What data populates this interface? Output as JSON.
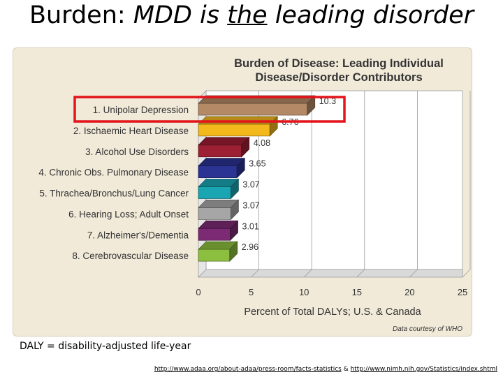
{
  "slide": {
    "title_prefix": "Burden: ",
    "title_mdd": "MDD is ",
    "title_the": "the",
    "title_suffix": " leading disorder",
    "definition": "DALY = disability-adjusted life-year",
    "link1": "http://www.adaa.org/about-adaa/press-room/facts-statistics",
    "link_sep": " & ",
    "link2": "http://www.nimh.nih.gov/Statistics/index.shtml"
  },
  "chart_data": {
    "type": "bar",
    "orientation": "horizontal",
    "title_line1": "Burden of Disease: Leading Individual",
    "title_line2": "Disease/Disorder Contributors",
    "xlabel": "Percent of Total DALYs; U.S. & Canada",
    "credit": "Data courtesy of WHO",
    "xlim": [
      0,
      25
    ],
    "xticks": [
      0,
      5,
      10,
      15,
      20,
      25
    ],
    "categories": [
      "1. Unipolar Depression",
      "2. Ischaemic Heart Disease",
      "3. Alcohol Use Disorders",
      "4. Chronic Obs. Pulmonary Disease",
      "5. Thrachea/Bronchus/Lung Cancer",
      "6. Hearing Loss; Adult Onset",
      "7. Alzheimer's/Dementia",
      "8. Cerebrovascular Disease"
    ],
    "values": [
      10.3,
      6.76,
      4.08,
      3.65,
      3.07,
      3.07,
      3.01,
      2.96
    ],
    "value_labels": [
      "10.3",
      "6.76",
      "4.08",
      "3.65",
      "3.07",
      "3.07",
      "3.01",
      "2.96"
    ],
    "colors": [
      "#b48a66",
      "#f2b81c",
      "#9c1f34",
      "#2b3393",
      "#1aa5b3",
      "#a6a6a6",
      "#7c2a74",
      "#8cbf3f"
    ],
    "highlight_index": 0,
    "highlight_color": "#e3141b",
    "grid": true
  }
}
